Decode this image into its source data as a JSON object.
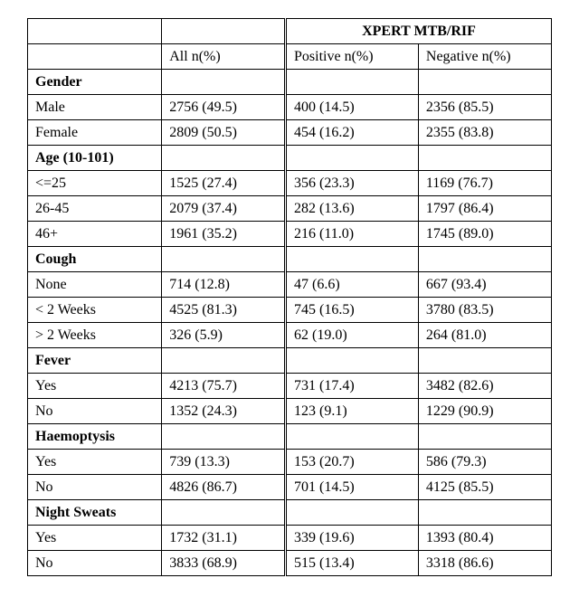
{
  "table": {
    "header": {
      "group_title": "XPERT MTB/RIF",
      "col_all": "All n(%)",
      "col_pos": "Positive n(%)",
      "col_neg": "Negative n(%)"
    },
    "sections": [
      {
        "label": "Gender",
        "rows": [
          {
            "label": "Male",
            "all": "2756 (49.5)",
            "pos": "400 (14.5)",
            "neg": "2356 (85.5)"
          },
          {
            "label": "Female",
            "all": "2809 (50.5)",
            "pos": "454 (16.2)",
            "neg": "2355 (83.8)"
          }
        ]
      },
      {
        "label": "Age (10-101)",
        "rows": [
          {
            "label": "<=25",
            "all": "1525 (27.4)",
            "pos": "356 (23.3)",
            "neg": "1169 (76.7)"
          },
          {
            "label": "26-45",
            "all": "2079 (37.4)",
            "pos": "282 (13.6)",
            "neg": "1797 (86.4)"
          },
          {
            "label": "46+",
            "all": "1961 (35.2)",
            "pos": "216 (11.0)",
            "neg": "1745 (89.0)"
          }
        ]
      },
      {
        "label": "Cough",
        "rows": [
          {
            "label": "None",
            "all": "714 (12.8)",
            "pos": "47 (6.6)",
            "neg": "667 (93.4)"
          },
          {
            "label": "< 2 Weeks",
            "all": "4525 (81.3)",
            "pos": "745 (16.5)",
            "neg": "3780 (83.5)"
          },
          {
            "label": "> 2 Weeks",
            "all": "326 (5.9)",
            "pos": "62 (19.0)",
            "neg": "264 (81.0)"
          }
        ]
      },
      {
        "label": "Fever",
        "rows": [
          {
            "label": "Yes",
            "all": "4213 (75.7)",
            "pos": "731 (17.4)",
            "neg": "3482 (82.6)"
          },
          {
            "label": "No",
            "all": "1352 (24.3)",
            "pos": "123 (9.1)",
            "neg": "1229 (90.9)"
          }
        ]
      },
      {
        "label": "Haemoptysis",
        "rows": [
          {
            "label": "Yes",
            "all": "739 (13.3)",
            "pos": "153 (20.7)",
            "neg": "586 (79.3)"
          },
          {
            "label": "No",
            "all": "4826 (86.7)",
            "pos": "701 (14.5)",
            "neg": "4125 (85.5)"
          }
        ]
      },
      {
        "label": "Night Sweats",
        "rows": [
          {
            "label": "Yes",
            "all": "1732 (31.1)",
            "pos": "339 (19.6)",
            "neg": "1393 (80.4)"
          },
          {
            "label": "No",
            "all": "3833 (68.9)",
            "pos": "515 (13.4)",
            "neg": "3318 (86.6)"
          }
        ]
      }
    ]
  }
}
